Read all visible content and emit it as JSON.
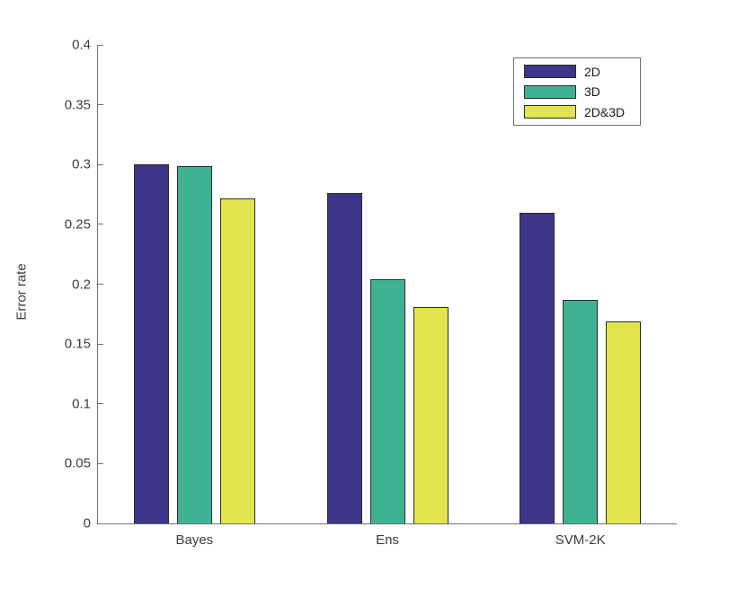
{
  "figure": {
    "background": "#ffffff"
  },
  "chart_data": {
    "type": "bar",
    "title": "",
    "xlabel": "",
    "ylabel": "Error rate",
    "categories": [
      "Bayes",
      "Ens",
      "SVM-2K"
    ],
    "series": [
      {
        "name": "2D",
        "color": "#3d3589",
        "values": [
          0.3,
          0.276,
          0.26
        ]
      },
      {
        "name": "3D",
        "color": "#40b294",
        "values": [
          0.299,
          0.204,
          0.187
        ]
      },
      {
        "name": "2D&3D",
        "color": "#e2e54d",
        "values": [
          0.272,
          0.181,
          0.169
        ]
      }
    ],
    "ylim": [
      0,
      0.4
    ],
    "ytick_step": 0.05,
    "ytick_labels": [
      "0",
      "0.05",
      "0.1",
      "0.15",
      "0.2",
      "0.25",
      "0.3",
      "0.35",
      "0.4"
    ],
    "grid": false,
    "legend_position": "top-right",
    "bar_edge_color": "#2b2b2b",
    "axis_color": "#707070",
    "text_color": "#3c3c3c"
  }
}
